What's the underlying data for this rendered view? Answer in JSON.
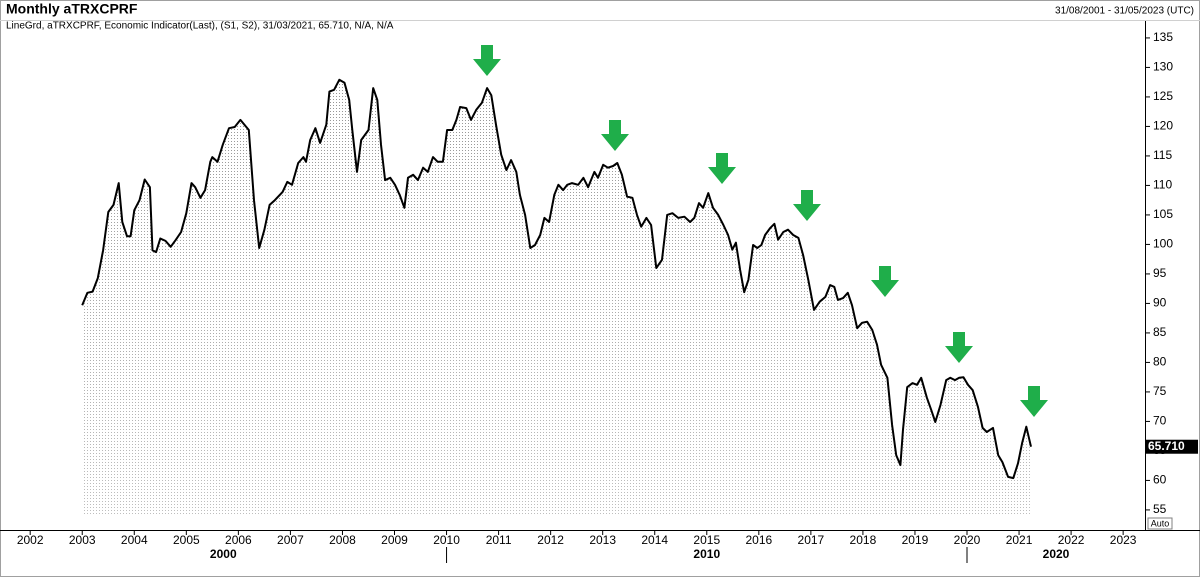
{
  "chart_data": {
    "type": "line",
    "title": "Monthly aTRXCPRF",
    "date_range": "31/08/2001 - 31/05/2023 (UTC)",
    "subtitle": "LineGrd, aTRXCPRF, Economic Indicator(Last), (S1, S2), 31/03/2021, 65.710, N/A, N/A",
    "last_label": "65.710",
    "axis_mode": "Auto",
    "color": "#000000",
    "x": [
      2003.0,
      2003.1,
      2003.2,
      2003.3,
      2003.4,
      2003.5,
      2003.6,
      2003.7,
      2003.77,
      2003.86,
      2003.93,
      2004.0,
      2004.1,
      2004.2,
      2004.3,
      2004.35,
      2004.42,
      2004.5,
      2004.6,
      2004.7,
      2004.8,
      2004.9,
      2005.0,
      2005.1,
      2005.17,
      2005.27,
      2005.36,
      2005.46,
      2005.5,
      2005.6,
      2005.7,
      2005.82,
      2005.93,
      2006.04,
      2006.2,
      2006.3,
      2006.4,
      2006.5,
      2006.6,
      2006.7,
      2006.85,
      2006.94,
      2007.03,
      2007.15,
      2007.25,
      2007.3,
      2007.38,
      2007.48,
      2007.57,
      2007.69,
      2007.75,
      2007.84,
      2007.94,
      2008.04,
      2008.13,
      2008.19,
      2008.28,
      2008.36,
      2008.46,
      2008.5,
      2008.59,
      2008.67,
      2008.74,
      2008.82,
      2008.92,
      2009.01,
      2009.1,
      2009.19,
      2009.26,
      2009.36,
      2009.45,
      2009.55,
      2009.64,
      2009.74,
      2009.83,
      2009.93,
      2010.01,
      2010.11,
      2010.19,
      2010.26,
      2010.38,
      2010.47,
      2010.57,
      2010.68,
      2010.78,
      2010.86,
      2010.95,
      2011.05,
      2011.15,
      2011.24,
      2011.34,
      2011.41,
      2011.51,
      2011.61,
      2011.7,
      2011.8,
      2011.88,
      2011.97,
      2012.07,
      2012.15,
      2012.24,
      2012.32,
      2012.41,
      2012.53,
      2012.63,
      2012.72,
      2012.84,
      2012.91,
      2013.01,
      2013.1,
      2013.2,
      2013.28,
      2013.37,
      2013.47,
      2013.57,
      2013.66,
      2013.74,
      2013.84,
      2013.93,
      2014.03,
      2014.14,
      2014.24,
      2014.34,
      2014.45,
      2014.57,
      2014.68,
      2014.76,
      2014.85,
      2014.93,
      2015.03,
      2015.12,
      2015.22,
      2015.32,
      2015.41,
      2015.49,
      2015.56,
      2015.64,
      2015.72,
      2015.8,
      2015.89,
      2015.97,
      2016.05,
      2016.12,
      2016.22,
      2016.3,
      2016.37,
      2016.47,
      2016.56,
      2016.66,
      2016.76,
      2016.85,
      2016.95,
      2017.06,
      2017.17,
      2017.28,
      2017.37,
      2017.45,
      2017.52,
      2017.62,
      2017.71,
      2017.79,
      2017.89,
      2017.98,
      2018.08,
      2018.18,
      2018.27,
      2018.35,
      2018.47,
      2018.56,
      2018.64,
      2018.72,
      2018.77,
      2018.85,
      2018.95,
      2019.04,
      2019.12,
      2019.23,
      2019.31,
      2019.39,
      2019.49,
      2019.6,
      2019.68,
      2019.77,
      2019.85,
      2019.93,
      2020.02,
      2020.11,
      2020.21,
      2020.3,
      2020.38,
      2020.5,
      2020.6,
      2020.68,
      2020.79,
      2020.89,
      2020.98,
      2021.06,
      2021.14,
      2021.23
    ],
    "values": [
      89.7,
      91.8,
      92.0,
      94.3,
      99.0,
      105.5,
      106.7,
      110.4,
      103.8,
      101.4,
      101.4,
      105.8,
      107.5,
      111.0,
      109.7,
      99.0,
      98.7,
      101.0,
      100.6,
      99.6,
      100.8,
      102.1,
      105.3,
      110.4,
      109.7,
      107.9,
      109.2,
      114.0,
      114.8,
      114.0,
      116.9,
      119.7,
      119.9,
      121.1,
      119.4,
      107.5,
      99.4,
      102.5,
      106.7,
      107.5,
      108.9,
      110.6,
      110.1,
      113.8,
      114.8,
      114.0,
      117.7,
      119.7,
      117.2,
      120.3,
      125.9,
      126.2,
      127.9,
      127.4,
      124.5,
      119.4,
      112.3,
      117.7,
      118.9,
      119.4,
      126.5,
      124.5,
      116.9,
      110.9,
      111.3,
      110.1,
      108.4,
      106.2,
      111.3,
      111.8,
      110.9,
      113.0,
      112.3,
      114.8,
      114.0,
      114.0,
      119.4,
      119.4,
      121.1,
      123.3,
      123.1,
      121.1,
      122.8,
      124.0,
      126.5,
      125.3,
      120.3,
      115.2,
      112.6,
      114.3,
      112.3,
      108.4,
      105.0,
      99.4,
      99.9,
      101.6,
      104.5,
      103.8,
      108.4,
      110.1,
      109.2,
      110.1,
      110.4,
      110.1,
      111.3,
      109.7,
      112.3,
      111.3,
      113.5,
      113.0,
      113.3,
      113.8,
      111.8,
      108.1,
      107.9,
      105.0,
      103.0,
      104.5,
      103.3,
      96.0,
      97.4,
      105.0,
      105.3,
      104.5,
      104.7,
      103.8,
      104.5,
      107.0,
      106.2,
      108.7,
      106.2,
      105.0,
      103.3,
      101.6,
      99.1,
      100.3,
      95.7,
      91.9,
      94.0,
      99.9,
      99.4,
      99.9,
      101.6,
      102.8,
      103.5,
      100.8,
      102.1,
      102.5,
      101.6,
      101.1,
      98.2,
      94.0,
      88.9,
      90.3,
      91.1,
      93.1,
      92.8,
      90.6,
      90.9,
      91.8,
      89.7,
      85.8,
      86.7,
      86.9,
      85.5,
      83.0,
      79.6,
      77.4,
      69.4,
      64.3,
      62.6,
      68.6,
      75.8,
      76.5,
      76.2,
      77.4,
      74.0,
      72.0,
      69.9,
      72.8,
      77.0,
      77.4,
      77.0,
      77.4,
      77.5,
      76.2,
      75.3,
      72.5,
      68.9,
      68.2,
      68.9,
      64.3,
      63.1,
      60.6,
      60.4,
      62.9,
      66.4,
      69.1,
      65.71
    ],
    "xlim": [
      2001.42,
      2023.42
    ],
    "ylim": [
      53.8,
      137.7
    ],
    "xticks": [
      2002,
      2003,
      2004,
      2005,
      2006,
      2007,
      2008,
      2009,
      2010,
      2011,
      2012,
      2013,
      2014,
      2015,
      2016,
      2017,
      2018,
      2019,
      2020,
      2021,
      2022,
      2023
    ],
    "yticks": [
      55,
      60,
      65,
      70,
      75,
      80,
      85,
      90,
      95,
      100,
      105,
      110,
      115,
      120,
      125,
      130,
      135
    ],
    "decade_labels": [
      "2000",
      "2010",
      "2020"
    ]
  }
}
